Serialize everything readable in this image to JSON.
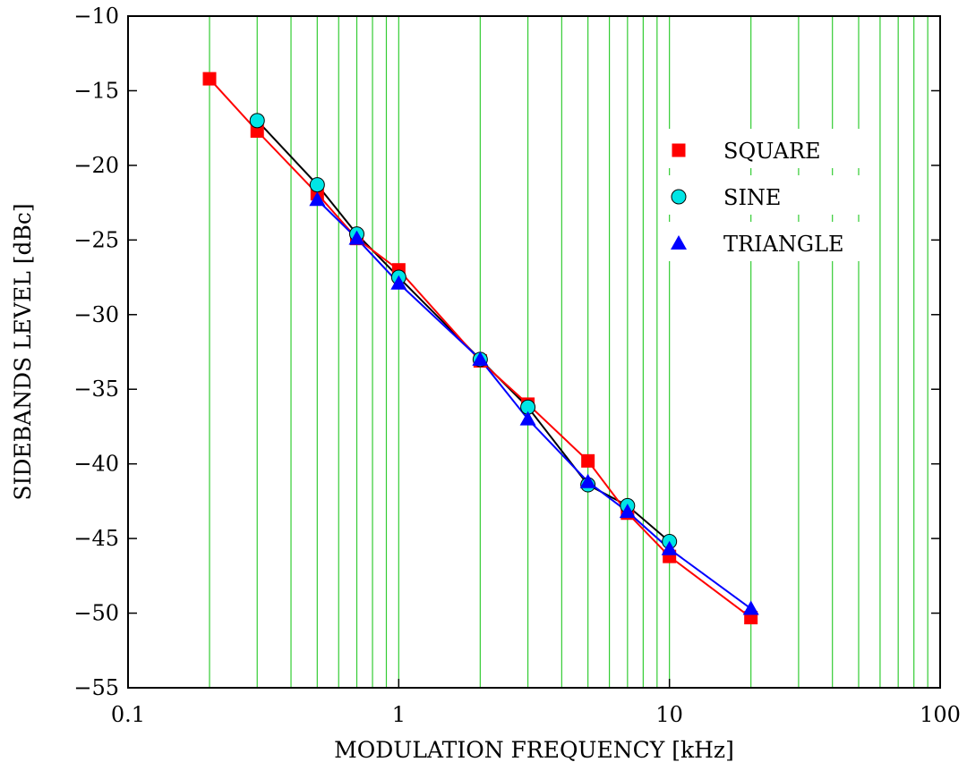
{
  "chart_data": {
    "type": "line",
    "title": "",
    "xlabel": "MODULATION FREQUENCY [kHz]",
    "ylabel": "SIDEBANDS LEVEL [dBc]",
    "x_scale": "log",
    "xlim": [
      0.1,
      100
    ],
    "ylim": [
      -55,
      -10
    ],
    "x_ticks": [
      0.1,
      1,
      10,
      100
    ],
    "x_tick_labels": [
      "0.1",
      "1",
      "10",
      "100"
    ],
    "y_ticks": [
      -55,
      -50,
      -45,
      -40,
      -35,
      -30,
      -25,
      -20,
      -15,
      -10
    ],
    "y_tick_labels": [
      "−55",
      "−50",
      "−45",
      "−40",
      "−35",
      "−30",
      "−25",
      "−20",
      "−15",
      "−10"
    ],
    "grid": "vertical lines at every log minor and major tick of x",
    "grid_color": "#33cc33",
    "legend_position": "upper-right",
    "series": [
      {
        "name": "SQUARE",
        "marker": "square",
        "color": "#ff0000",
        "line_color": "#ff0000",
        "x": [
          0.2,
          0.3,
          0.5,
          0.7,
          1,
          2,
          3,
          5,
          7,
          10,
          20
        ],
        "y": [
          -14.2,
          -17.7,
          -21.9,
          -24.9,
          -27.0,
          -33.1,
          -36.0,
          -39.8,
          -43.3,
          -46.2,
          -50.3
        ]
      },
      {
        "name": "SINE",
        "marker": "circle",
        "color": "#00e5e5",
        "line_color": "#000000",
        "x": [
          0.3,
          0.5,
          0.7,
          1,
          2,
          3,
          5,
          7,
          10
        ],
        "y": [
          -17.0,
          -21.3,
          -24.6,
          -27.5,
          -33.0,
          -36.2,
          -41.4,
          -42.8,
          -45.2
        ]
      },
      {
        "name": "TRIANGLE",
        "marker": "triangle",
        "color": "#0000ff",
        "line_color": "#0000ff",
        "x": [
          0.5,
          0.7,
          1,
          2,
          3,
          5,
          7,
          10,
          20
        ],
        "y": [
          -22.3,
          -24.9,
          -27.9,
          -33.0,
          -37.0,
          -41.2,
          -43.2,
          -45.7,
          -49.7
        ]
      }
    ]
  }
}
